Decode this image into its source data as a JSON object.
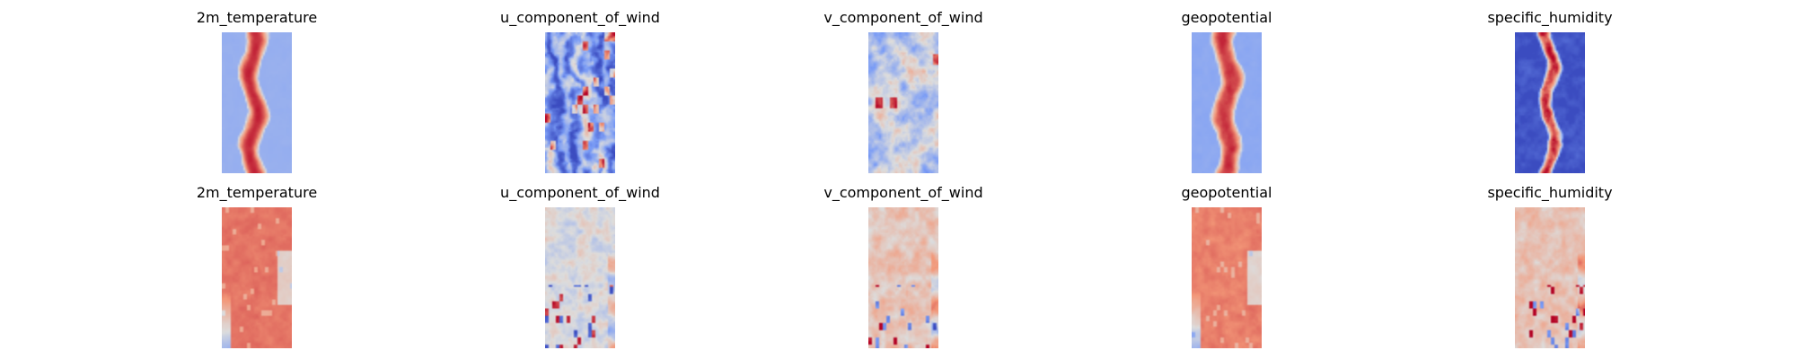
{
  "chart_data": {
    "type": "heatmap",
    "colormap": "coolwarm",
    "axes": "off",
    "grid": false,
    "legend": "none",
    "rows": [
      {
        "panels": [
          {
            "title": "2m_temperature",
            "pattern": "warm-band",
            "center": 0.45,
            "width": 0.34,
            "amp": 0.88,
            "noise": 0.05,
            "bg": -0.35
          },
          {
            "title": "u_component_of_wind",
            "pattern": "streaks",
            "center": 0.5,
            "width": 0.5,
            "amp": 0.45,
            "noise": 0.35,
            "bg": -0.45
          },
          {
            "title": "v_component_of_wind",
            "pattern": "swirls",
            "center": 0.5,
            "width": 0.5,
            "amp": 0.25,
            "noise": 0.35,
            "bg": -0.15
          },
          {
            "title": "geopotential",
            "pattern": "warm-band",
            "center": 0.5,
            "width": 0.36,
            "amp": 0.85,
            "noise": 0.08,
            "bg": -0.4
          },
          {
            "title": "specific_humidity",
            "pattern": "narrow-band",
            "center": 0.5,
            "width": 0.22,
            "amp": 0.8,
            "noise": 0.35,
            "bg": -0.95
          }
        ]
      },
      {
        "panels": [
          {
            "title": "2m_temperature",
            "pattern": "flat-warm",
            "center": 0.5,
            "width": 1.0,
            "amp": 0.62,
            "noise": 0.08,
            "bg": 0.62
          },
          {
            "title": "u_component_of_wind",
            "pattern": "residual",
            "center": 0.5,
            "width": 1.0,
            "amp": 0.1,
            "noise": 0.25,
            "bg": -0.02
          },
          {
            "title": "v_component_of_wind",
            "pattern": "residual",
            "center": 0.5,
            "width": 1.0,
            "amp": 0.18,
            "noise": 0.25,
            "bg": 0.18
          },
          {
            "title": "geopotential",
            "pattern": "flat-warm",
            "center": 0.5,
            "width": 1.0,
            "amp": 0.58,
            "noise": 0.1,
            "bg": 0.58
          },
          {
            "title": "specific_humidity",
            "pattern": "residual",
            "center": 0.5,
            "width": 1.0,
            "amp": 0.2,
            "noise": 0.22,
            "bg": 0.2
          }
        ]
      }
    ]
  }
}
